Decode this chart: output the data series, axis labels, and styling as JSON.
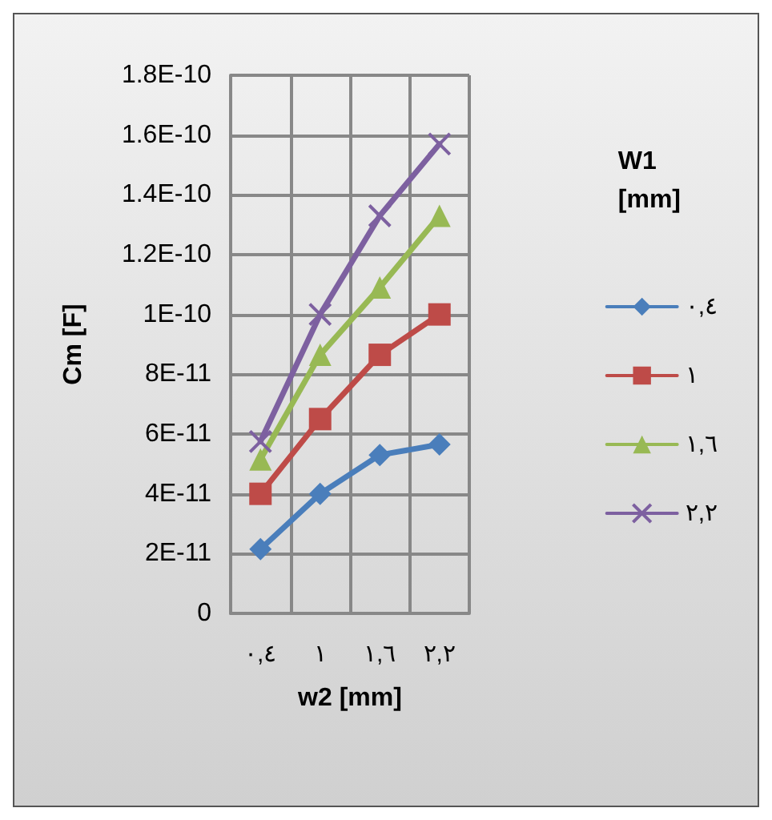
{
  "chart_data": {
    "type": "line",
    "xlabel": "w2 [mm]",
    "ylabel": "Cm [F]",
    "legend_title": "W1 [mm]",
    "legend": "right",
    "grid": true,
    "categories": [
      "٠,٤",
      "١",
      "١,٦",
      "٢,٢"
    ],
    "ylim": [
      0,
      1.8e-10
    ],
    "yticks": [
      0,
      {
        "value": 2e-11,
        "label": "2E-11"
      },
      {
        "value": 4e-11,
        "label": "4E-11"
      },
      {
        "value": 6e-11,
        "label": "6E-11"
      },
      {
        "value": 8e-11,
        "label": "8E-11"
      },
      {
        "value": 1e-10,
        "label": "1E-10"
      },
      {
        "value": 1.2e-10,
        "label": "1.2E-10"
      },
      {
        "value": 1.4e-10,
        "label": "1.4E-10"
      },
      {
        "value": 1.6e-10,
        "label": "1.6E-10"
      },
      {
        "value": 1.8e-10,
        "label": "1.8E-10"
      }
    ],
    "series": [
      {
        "name": "٠,٤",
        "color": "#4a7ebb",
        "marker": "diamond",
        "values": [
          2.15e-11,
          4e-11,
          5.3e-11,
          5.65e-11
        ]
      },
      {
        "name": "١",
        "color": "#be4b48",
        "marker": "square",
        "values": [
          4e-11,
          6.5e-11,
          8.65e-11,
          1e-10
        ]
      },
      {
        "name": "١,٦",
        "color": "#98b954",
        "marker": "triangle",
        "values": [
          5.15e-11,
          8.65e-11,
          1.09e-10,
          1.33e-10
        ]
      },
      {
        "name": "٢,٢",
        "color": "#7d60a0",
        "marker": "cross",
        "values": [
          5.75e-11,
          1e-10,
          1.33e-10,
          1.57e-10
        ]
      }
    ]
  }
}
